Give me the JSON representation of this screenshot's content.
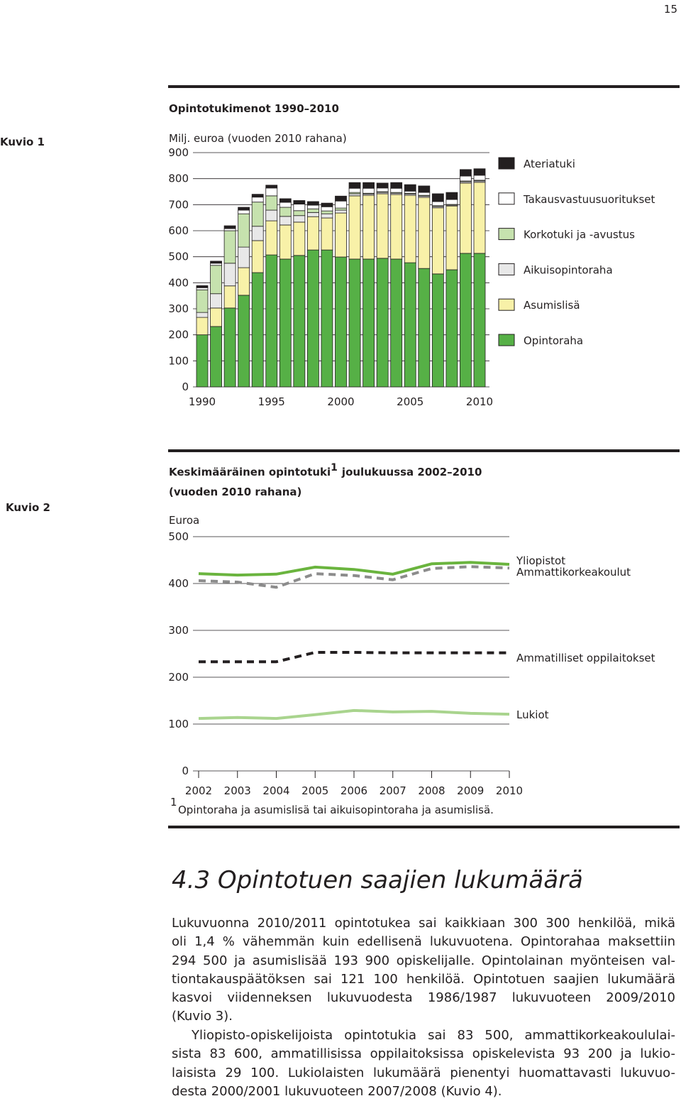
{
  "page_number": "15",
  "chart_data": [
    {
      "label": "Kuvio 1",
      "type": "bar",
      "stacked": true,
      "title": "Opintotukimenot 1990–2010",
      "y_label": "Milj. euroa (vuoden 2010 rahana)",
      "categories": [
        "1990",
        null,
        null,
        null,
        null,
        "1995",
        null,
        null,
        null,
        null,
        "2000",
        null,
        null,
        null,
        null,
        "2005",
        null,
        null,
        null,
        null,
        "2010"
      ],
      "series": [
        {
          "name": "Opintoraha",
          "color": "#56b046",
          "values": [
            200,
            232,
            303,
            352,
            439,
            507,
            491,
            505,
            526,
            526,
            499,
            491,
            491,
            494,
            491,
            477,
            455,
            434,
            450,
            513,
            513
          ]
        },
        {
          "name": "Asumislisä",
          "color": "#f8f1a8",
          "values": [
            67,
            71,
            85,
            106,
            123,
            131,
            131,
            128,
            128,
            123,
            169,
            243,
            245,
            248,
            248,
            259,
            273,
            254,
            245,
            270,
            273
          ]
        },
        {
          "name": "Aikuisopintoraha",
          "color": "#e8e8e8",
          "values": [
            19,
            55,
            87,
            79,
            55,
            41,
            33,
            25,
            16,
            16,
            11,
            8,
            5,
            5,
            5,
            5,
            5,
            5,
            3,
            5,
            5
          ]
        },
        {
          "name": "Korkotuki ja -avustus",
          "color": "#c6e2ae",
          "values": [
            87,
            109,
            125,
            128,
            93,
            55,
            35,
            19,
            14,
            11,
            8,
            5,
            3,
            3,
            3,
            3,
            3,
            3,
            3,
            3,
            3
          ]
        },
        {
          "name": "Takausvastuusuoritukset",
          "color": "#ffffff",
          "values": [
            8,
            8,
            8,
            14,
            19,
            30,
            19,
            25,
            14,
            16,
            27,
            16,
            19,
            14,
            16,
            8,
            11,
            16,
            19,
            19,
            19
          ]
        },
        {
          "name": "Ateriatuki",
          "color": "#231f20",
          "values": [
            8,
            8,
            11,
            11,
            11,
            11,
            14,
            14,
            14,
            14,
            19,
            22,
            22,
            19,
            22,
            25,
            25,
            30,
            27,
            25,
            25
          ]
        }
      ],
      "ylim": [
        0,
        900
      ],
      "yticks": [
        0,
        100,
        200,
        300,
        400,
        500,
        600,
        700,
        800,
        900
      ],
      "grid": true,
      "legend": "right"
    },
    {
      "label": "Kuvio 2",
      "type": "line",
      "title": "Keskimääräinen opintotuki",
      "title_note": "1",
      "title_rest": "joulukuussa 2002–2010",
      "subtitle": "(vuoden 2010 rahana)",
      "y_label": "Euroa",
      "x": [
        2002,
        2003,
        2004,
        2005,
        2006,
        2007,
        2008,
        2009,
        2010
      ],
      "xlim": [
        2002,
        2010
      ],
      "xticks": [
        2002,
        2003,
        2004,
        2005,
        2006,
        2007,
        2008,
        2009,
        2010
      ],
      "series": [
        {
          "name": "Yliopistot",
          "color": "#6ab43e",
          "line_style": "solid",
          "values": [
            421,
            418,
            420,
            435,
            430,
            420,
            442,
            445,
            441
          ]
        },
        {
          "name": "Ammattikorkeakoulut",
          "color": "#8c8c8c",
          "line_style": "dashed",
          "values": [
            406,
            403,
            392,
            421,
            417,
            408,
            432,
            436,
            433
          ]
        },
        {
          "name": "Ammatilliset oppilaitokset",
          "color": "#231f20",
          "line_style": "dashed",
          "values": [
            233,
            233,
            233,
            253,
            253,
            252,
            252,
            252,
            252
          ]
        },
        {
          "name": "Lukiot",
          "color": "#a9d48e",
          "line_style": "solid",
          "values": [
            112,
            114,
            112,
            120,
            129,
            126,
            127,
            123,
            121
          ]
        }
      ],
      "ylim": [
        0,
        500
      ],
      "yticks": [
        0,
        100,
        200,
        300,
        400,
        500
      ],
      "grid": true,
      "footnote_mark": "1",
      "footnote": "Opintoraha ja asumislisä tai aikuisopintoraha ja asumislisä."
    }
  ],
  "section": {
    "heading": "4.3 Opintotuen saajien lukumäärä",
    "paragraphs": [
      [
        "Lukuvuonna 2010/2011 opintotukea sai kaikkiaan 300 300 henkilöä, mikä",
        "oli 1,4 % vähemmän kuin edellisenä lukuvuotena. Opintorahaa maksettiin",
        "294 500 ja asumislisää 193 900 opiskelijalle. Opintolainan myönteisen val-",
        "tiontakauspäätöksen sai 121 100 henkilöä. Opintotuen saajien lukumäärä",
        "kasvoi viidenneksen lukuvuodesta 1986/1987 lukuvuoteen 2009/2010",
        "(Kuvio 3)."
      ],
      [
        "Yliopisto-opiskelijoista opintotukia sai 83 500, ammattikorkeakoululai-",
        "sista 83 600, ammatillisissa oppilaitoksissa opiskelevista 93 200 ja lukio-",
        "laisista 29 100. Lukiolaisten lukumäärä pienentyi huomattavasti lukuvuo-",
        "desta 2000/2001 lukuvuoteen 2007/2008 (Kuvio 4)."
      ]
    ]
  }
}
